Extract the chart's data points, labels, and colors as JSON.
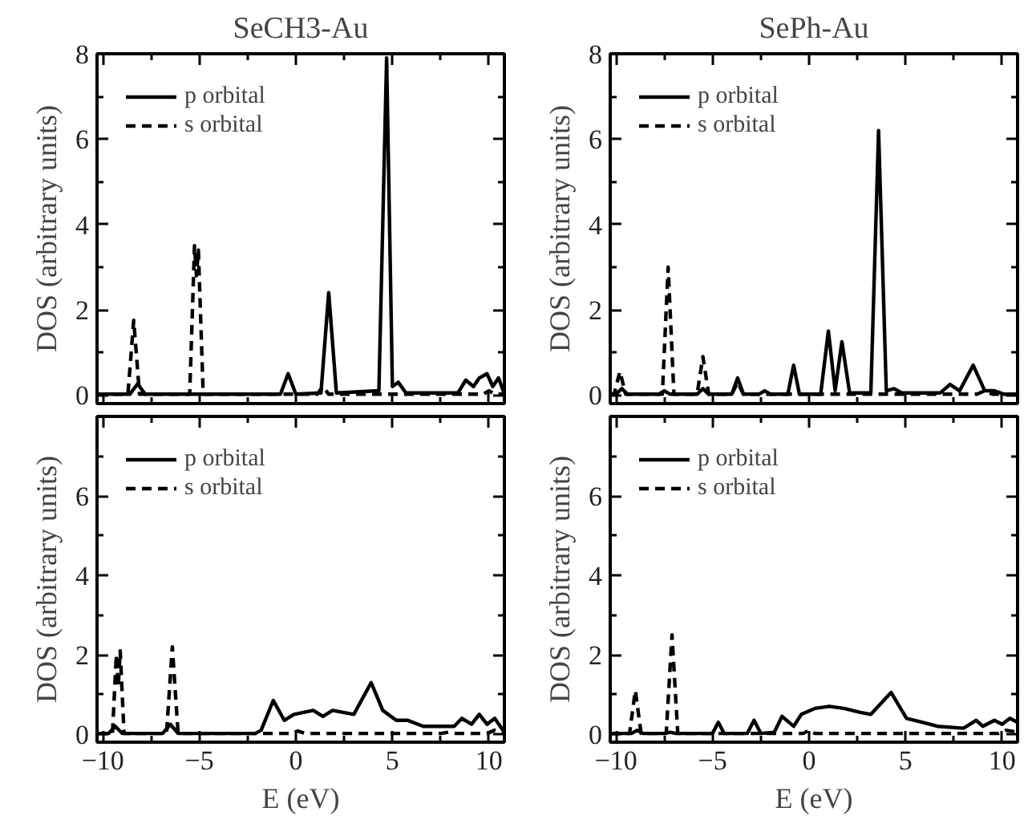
{
  "chart_data": [
    {
      "type": "line",
      "title": "SeCH3-Au",
      "ylabel": "DOS (arbitrary units)",
      "xlim": [
        -10.3,
        10.8
      ],
      "ylim": [
        -0.2,
        8
      ],
      "legend": "top left",
      "tick_labels": "y",
      "xticks": [
        -10,
        {
          "value": -7.5,
          "label": null
        },
        -5,
        {
          "value": -2.5,
          "label": null
        },
        0,
        {
          "value": 2.5,
          "label": null
        },
        5,
        {
          "value": 7.5,
          "label": null
        },
        10
      ],
      "yticks": [
        0,
        {
          "value": 1,
          "label": null
        },
        2,
        {
          "value": 3,
          "label": null
        },
        4,
        {
          "value": 5,
          "label": null
        },
        6,
        {
          "value": 7,
          "label": null
        },
        8
      ],
      "series": [
        {
          "name": "p orbital",
          "color": "#000000",
          "line_style": "solid",
          "x": [
            -10.3,
            -8.6,
            -8.2,
            -7.8,
            -0.8,
            -0.4,
            0,
            1.3,
            1.7,
            2.1,
            4.3,
            4.7,
            5.0,
            5.3,
            5.7,
            8.4,
            8.8,
            9.2,
            9.5,
            9.9,
            10.2,
            10.5,
            10.8
          ],
          "values": [
            0.02,
            0.02,
            0.26,
            0.02,
            0.02,
            0.5,
            0.02,
            0.05,
            2.4,
            0.05,
            0.1,
            7.9,
            0.2,
            0.3,
            0.05,
            0.05,
            0.35,
            0.2,
            0.4,
            0.5,
            0.2,
            0.4,
            0.02
          ]
        },
        {
          "name": "s orbital",
          "color": "#000000",
          "line_style": "dashed",
          "x": [
            -10.3,
            -8.7,
            -8.4,
            -8.1,
            -5.5,
            -5.25,
            -5.15,
            -5.05,
            -4.8,
            1.1,
            1.4,
            1.7,
            9.7,
            10.0,
            10.3,
            10.8
          ],
          "values": [
            0.02,
            0.02,
            1.75,
            0.02,
            0.02,
            3.5,
            2.8,
            3.4,
            0.02,
            0.02,
            0.2,
            0.02,
            0.02,
            0.1,
            0.02,
            0.02
          ]
        }
      ]
    },
    {
      "type": "line",
      "title": "SePh-Au",
      "ylabel": "DOS (arbitrary units)",
      "xlim": [
        -10.3,
        10.8
      ],
      "ylim": [
        -0.2,
        8
      ],
      "legend": "top left",
      "tick_labels": "y",
      "xticks": [
        -10,
        {
          "value": -7.5,
          "label": null
        },
        -5,
        {
          "value": -2.5,
          "label": null
        },
        0,
        {
          "value": 2.5,
          "label": null
        },
        5,
        {
          "value": 7.5,
          "label": null
        },
        10
      ],
      "yticks": [
        0,
        {
          "value": 1,
          "label": null
        },
        2,
        {
          "value": 3,
          "label": null
        },
        4,
        {
          "value": 5,
          "label": null
        },
        6,
        {
          "value": 7,
          "label": null
        },
        8
      ],
      "series": [
        {
          "name": "p orbital",
          "color": "#000000",
          "line_style": "solid",
          "x": [
            -10.3,
            -10.0,
            -9.7,
            -9.4,
            -7.8,
            -7.5,
            -7.2,
            -5.8,
            -5.5,
            -5.2,
            -4.0,
            -3.7,
            -3.4,
            -2.6,
            -2.3,
            -2.0,
            -1.1,
            -0.8,
            -0.5,
            0.6,
            1.0,
            1.35,
            1.7,
            2.1,
            3.2,
            3.6,
            4.0,
            4.4,
            4.8,
            6.8,
            7.3,
            7.8,
            8.5,
            9.1,
            9.6,
            10.1,
            10.8
          ],
          "values": [
            0.02,
            0.02,
            0.15,
            0.02,
            0.02,
            0.1,
            0.02,
            0.02,
            0.15,
            0.02,
            0.02,
            0.4,
            0.02,
            0.02,
            0.1,
            0.02,
            0.02,
            0.7,
            0.02,
            0.02,
            1.5,
            0.1,
            1.25,
            0.05,
            0.05,
            6.2,
            0.1,
            0.15,
            0.05,
            0.05,
            0.25,
            0.1,
            0.7,
            0.1,
            0.1,
            0.02,
            0.02
          ]
        },
        {
          "name": "s orbital",
          "color": "#000000",
          "line_style": "dashed",
          "x": [
            -10.3,
            -10.1,
            -9.8,
            -9.5,
            -7.6,
            -7.3,
            -7.0,
            -5.8,
            -5.5,
            -5.2,
            -4.0,
            -3.7,
            -3.4,
            8.7,
            9.1,
            9.5,
            10.8
          ],
          "values": [
            0.02,
            0.02,
            0.55,
            0.02,
            0.02,
            3.0,
            0.02,
            0.02,
            0.9,
            0.02,
            0.02,
            0.3,
            0.02,
            0.02,
            0.1,
            0.02,
            0.02
          ]
        }
      ]
    },
    {
      "type": "line",
      "xlabel": "E (eV)",
      "ylabel": "DOS (arbitrary units)",
      "xlim": [
        -10.3,
        10.8
      ],
      "ylim": [
        -0.2,
        8
      ],
      "legend": "top left",
      "xticks": [
        -10,
        {
          "value": -7.5,
          "label": null
        },
        -5,
        {
          "value": -2.5,
          "label": null
        },
        0,
        {
          "value": 2.5,
          "label": null
        },
        5,
        {
          "value": 7.5,
          "label": null
        },
        10
      ],
      "yticks": [
        0,
        {
          "value": 1,
          "label": null
        },
        2,
        {
          "value": 3,
          "label": null
        },
        4,
        {
          "value": 5,
          "label": null
        },
        6,
        {
          "value": 7,
          "label": null
        },
        {
          "value": 8,
          "label": null
        }
      ],
      "series": [
        {
          "name": "p orbital",
          "color": "#000000",
          "line_style": "solid",
          "x": [
            -10.3,
            -9.7,
            -9.35,
            -9.0,
            -6.9,
            -6.5,
            -6.1,
            -2.1,
            -1.8,
            -1.17,
            -0.6,
            -0.1,
            0.9,
            1.4,
            1.9,
            3.0,
            3.9,
            4.5,
            5.2,
            5.8,
            6.6,
            7.4,
            8.2,
            8.6,
            9.1,
            9.5,
            9.9,
            10.3,
            10.8
          ],
          "values": [
            0.02,
            0.02,
            0.2,
            0.02,
            0.02,
            0.25,
            0.02,
            0.02,
            0.1,
            0.85,
            0.35,
            0.5,
            0.6,
            0.45,
            0.6,
            0.5,
            1.3,
            0.6,
            0.35,
            0.35,
            0.2,
            0.2,
            0.2,
            0.4,
            0.25,
            0.5,
            0.25,
            0.4,
            0.05
          ]
        },
        {
          "name": "s orbital",
          "color": "#000000",
          "line_style": "dashed",
          "x": [
            -10.3,
            -9.5,
            -9.3,
            -9.2,
            -9.1,
            -8.9,
            -6.7,
            -6.4,
            -6.1,
            -0.3,
            0.1,
            0.5,
            7.5,
            7.9,
            8.3,
            9.9,
            10.3,
            10.8
          ],
          "values": [
            0.02,
            0.02,
            2.0,
            1.2,
            2.1,
            0.02,
            0.02,
            2.2,
            0.02,
            0.02,
            0.08,
            0.02,
            0.02,
            0.05,
            0.02,
            0.02,
            0.1,
            0.02
          ]
        }
      ]
    },
    {
      "type": "line",
      "xlabel": "E (eV)",
      "ylabel": "DOS (arbitrary units)",
      "xlim": [
        -10.3,
        10.8
      ],
      "ylim": [
        -0.2,
        8
      ],
      "legend": "top left",
      "xticks": [
        -10,
        {
          "value": -7.5,
          "label": null
        },
        -5,
        {
          "value": -2.5,
          "label": null
        },
        0,
        {
          "value": 2.5,
          "label": null
        },
        5,
        {
          "value": 7.5,
          "label": null
        },
        10
      ],
      "yticks": [
        0,
        {
          "value": 1,
          "label": null
        },
        2,
        {
          "value": 3,
          "label": null
        },
        4,
        {
          "value": 5,
          "label": null
        },
        6,
        {
          "value": 7,
          "label": null
        },
        {
          "value": 8,
          "label": null
        }
      ],
      "series": [
        {
          "name": "p orbital",
          "color": "#000000",
          "line_style": "solid",
          "x": [
            -10.3,
            -9.2,
            -8.9,
            -8.6,
            -7.5,
            -7.2,
            -6.9,
            -5.0,
            -4.7,
            -4.4,
            -3.2,
            -2.85,
            -2.5,
            -1.8,
            -1.4,
            -0.8,
            -0.4,
            0.3,
            1.05,
            1.8,
            2.65,
            3.2,
            4.25,
            5.05,
            5.85,
            6.65,
            8.0,
            8.65,
            9.0,
            9.6,
            10.0,
            10.4,
            10.8
          ],
          "values": [
            0.02,
            0.02,
            0.1,
            0.02,
            0.02,
            0.05,
            0.02,
            0.02,
            0.3,
            0.02,
            0.02,
            0.35,
            0.02,
            0.05,
            0.45,
            0.2,
            0.5,
            0.65,
            0.7,
            0.65,
            0.55,
            0.5,
            1.05,
            0.4,
            0.3,
            0.2,
            0.15,
            0.35,
            0.2,
            0.35,
            0.25,
            0.4,
            0.3
          ]
        },
        {
          "name": "s orbital",
          "color": "#000000",
          "line_style": "dashed",
          "x": [
            -10.3,
            -9.3,
            -9.0,
            -8.7,
            -7.4,
            -7.1,
            -6.8,
            -0.3,
            0.0,
            0.3,
            9.8,
            10.2,
            10.8
          ],
          "values": [
            0.02,
            0.02,
            1.1,
            0.02,
            0.02,
            2.5,
            0.02,
            0.02,
            0.1,
            0.02,
            0.02,
            0.1,
            0.05
          ]
        }
      ]
    }
  ]
}
